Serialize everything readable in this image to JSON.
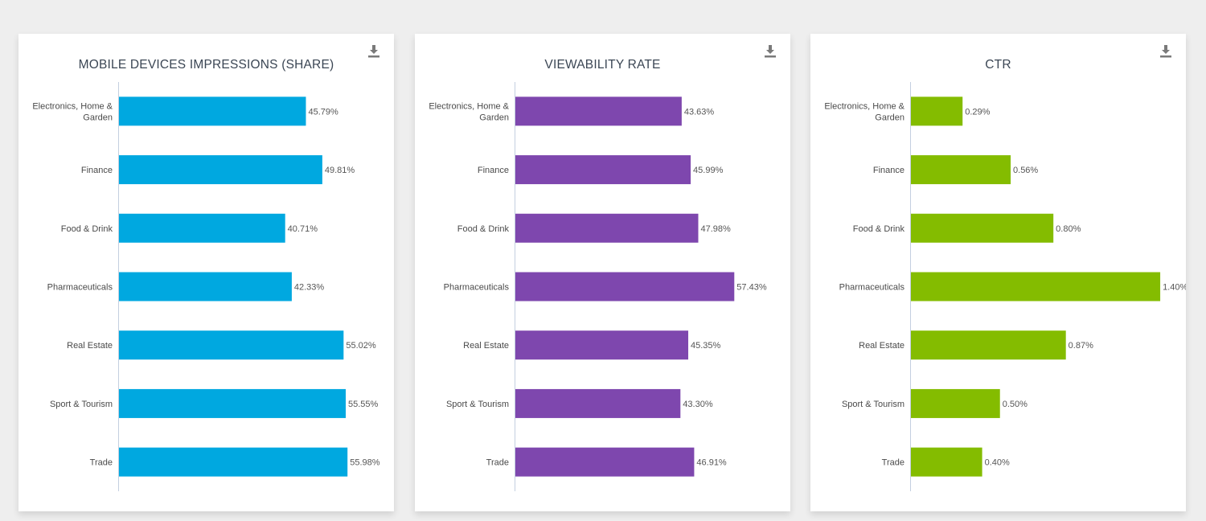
{
  "background": "#eeeeee",
  "chart_data": [
    {
      "type": "bar",
      "orientation": "horizontal",
      "title": "MOBILE DEVICES IMPRESSIONS (SHARE)",
      "categories": [
        [
          "Electronics, Home &",
          "Garden"
        ],
        [
          "Finance"
        ],
        [
          "Food & Drink"
        ],
        [
          "Pharmaceuticals"
        ],
        [
          "Real Estate"
        ],
        [
          "Sport & Tourism"
        ],
        [
          "Trade"
        ]
      ],
      "values": [
        45.79,
        49.81,
        40.71,
        42.33,
        55.02,
        55.55,
        55.98
      ],
      "value_labels": [
        "45.79%",
        "49.81%",
        "40.71%",
        "42.33%",
        "55.02%",
        "55.55%",
        "55.98%"
      ],
      "color": "#00a8e0",
      "xlim": [
        0,
        65
      ],
      "grid": false,
      "legend": "none",
      "download_icon": "download-icon"
    },
    {
      "type": "bar",
      "orientation": "horizontal",
      "title": "VIEWABILITY RATE",
      "categories": [
        [
          "Electronics, Home &",
          "Garden"
        ],
        [
          "Finance"
        ],
        [
          "Food & Drink"
        ],
        [
          "Pharmaceuticals"
        ],
        [
          "Real Estate"
        ],
        [
          "Sport & Tourism"
        ],
        [
          "Trade"
        ]
      ],
      "values": [
        43.63,
        45.99,
        47.98,
        57.43,
        45.35,
        43.3,
        46.91
      ],
      "value_labels": [
        "43.63%",
        "45.99%",
        "47.98%",
        "57.43%",
        "45.35%",
        "43.30%",
        "46.91%"
      ],
      "color": "#7e47ae",
      "xlim": [
        0,
        69.6
      ],
      "grid": false,
      "legend": "none",
      "download_icon": "download-icon"
    },
    {
      "type": "bar",
      "orientation": "horizontal",
      "title": "CTR",
      "categories": [
        [
          "Electronics, Home &",
          "Garden"
        ],
        [
          "Finance"
        ],
        [
          "Food & Drink"
        ],
        [
          "Pharmaceuticals"
        ],
        [
          "Real Estate"
        ],
        [
          "Sport & Tourism"
        ],
        [
          "Trade"
        ]
      ],
      "values": [
        0.29,
        0.56,
        0.8,
        1.4,
        0.87,
        0.5,
        0.4
      ],
      "value_labels": [
        "0.29%",
        "0.56%",
        "0.80%",
        "1.40%",
        "0.87%",
        "0.50%",
        "0.40%"
      ],
      "color": "#84bc00",
      "xlim": [
        0,
        1.49
      ],
      "grid": false,
      "legend": "none",
      "download_icon": "download-icon"
    }
  ]
}
